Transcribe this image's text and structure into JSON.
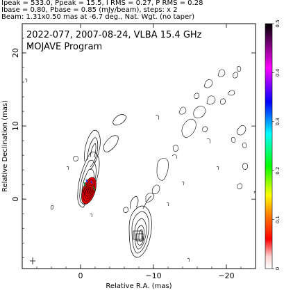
{
  "header": {
    "line1": "Ipeak = 533.0, Ppeak = 15.5, I RMS = 0.27, P RMS = 0.28",
    "line2": "Ibase = 0.80, Pbase = 0.85 (mJy/beam), steps: x 2",
    "line3": "Beam: 1.31x0.50 mas at -6.7 deg., Nat. Wgt. (no taper)"
  },
  "overlay": {
    "title": "2022-077, 2007-08-24, VLBA 15.4 GHz",
    "program": "MOJAVE Program"
  },
  "axes": {
    "xlabel": "Relative R.A. (mas)",
    "ylabel": "Relative Declination (mas)",
    "xticks": [
      {
        "value": 0,
        "label": "0"
      },
      {
        "value": -10,
        "label": "−10"
      },
      {
        "value": -20,
        "label": "−20"
      }
    ],
    "yticks": [
      {
        "value": 0,
        "label": "0"
      },
      {
        "value": 10,
        "label": "10"
      },
      {
        "value": 20,
        "label": "20"
      }
    ],
    "xrange": [
      8,
      -24
    ],
    "yrange": [
      -9.5,
      24
    ]
  },
  "colorbar": {
    "ticks": [
      "0",
      "0.1",
      "0.2",
      "0.3",
      "0.4",
      "0.5"
    ],
    "range": [
      0,
      0.5
    ]
  },
  "colors": {
    "core_fill": "#e00000",
    "contour": "#000000",
    "core_edge_green": "#00a040",
    "core_edge_blue": "#2040ff"
  }
}
